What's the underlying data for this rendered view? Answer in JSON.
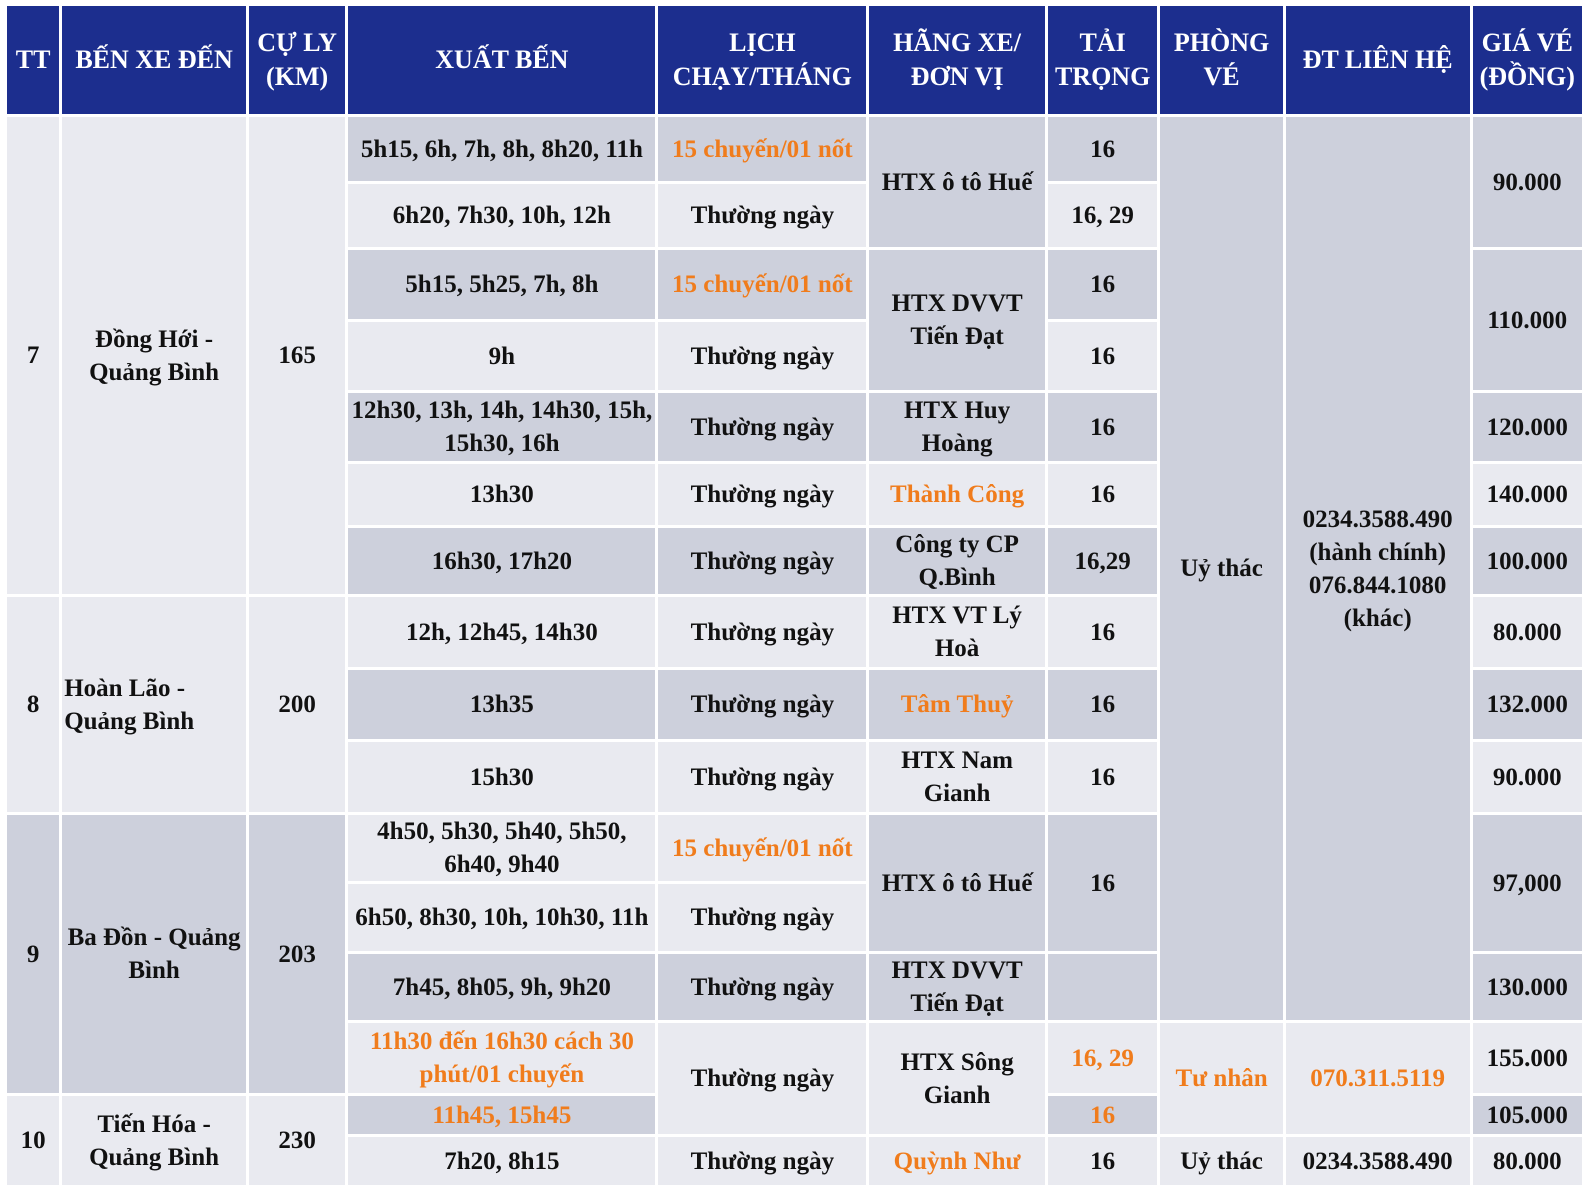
{
  "header": [
    "TT",
    "BẾN XE ĐẾN",
    "CỰ LY (KM)",
    "XUẤT BẾN",
    "LỊCH CHẠY/THÁNG",
    "HÃNG XE/ ĐƠN VỊ",
    "TẢI TRỌNG",
    "PHÒNG VÉ",
    "ĐT LIÊN HỆ",
    "GIÁ VÉ (ĐỒNG)"
  ],
  "rows": [
    [
      "7",
      "Đồng Hới - Quảng Bình",
      "165",
      "5h15, 6h, 7h, 8h, 8h20, 11h",
      "15 chuyến/01 nốt",
      "HTX ô tô Huế",
      "16",
      "Uỷ thác",
      "0234.3588.490 (hành chính) 076.844.1080 (khác)",
      "90.000"
    ],
    [
      "6h20, 7h30, 10h, 12h",
      "Thường ngày",
      "16, 29"
    ],
    [
      "5h15, 5h25, 7h, 8h",
      "15 chuyến/01 nốt",
      "HTX DVVT Tiến Đạt",
      "16",
      "110.000"
    ],
    [
      "9h",
      "Thường ngày",
      "16"
    ],
    [
      "12h30, 13h, 14h, 14h30, 15h, 15h30, 16h",
      "Thường ngày",
      "HTX Huy Hoàng",
      "16",
      "120.000"
    ],
    [
      "13h30",
      "Thường ngày",
      "Thành Công",
      "16",
      "140.000"
    ],
    [
      "16h30, 17h20",
      "Thường ngày",
      "Công ty CP Q.Bình",
      "16,29",
      "100.000"
    ],
    [
      "8",
      "Hoàn Lão - Quảng Bình",
      "200",
      "12h, 12h45, 14h30",
      "Thường ngày",
      "HTX VT Lý Hoà",
      "16",
      "80.000"
    ],
    [
      "13h35",
      "Thường ngày",
      "Tâm Thuỷ",
      "16",
      "132.000"
    ],
    [
      "15h30",
      "Thường ngày",
      "HTX Nam Gianh",
      "16",
      "90.000"
    ],
    [
      "9",
      "Ba Đồn - Quảng Bình",
      "203",
      "4h50, 5h30, 5h40, 5h50, 6h40, 9h40",
      "15 chuyến/01 nốt",
      "HTX ô tô Huế",
      "16",
      "97,000"
    ],
    [
      "6h50, 8h30, 10h, 10h30, 11h",
      "Thường ngày"
    ],
    [
      "7h45, 8h05, 9h, 9h20",
      "Thường ngày",
      "HTX DVVT Tiến Đạt",
      "130.000"
    ],
    [
      "11h30 đến 16h30 cách 30 phút/01 chuyến",
      "Thường ngày",
      "HTX Sông Gianh",
      "16, 29",
      "Tư nhân",
      "070.311.5119",
      "155.000"
    ],
    [
      "10",
      "Tiến Hóa - Quảng Bình",
      "230",
      "11h45, 15h45",
      "16",
      "105.000"
    ],
    [
      "7h20, 8h15",
      "Thường ngày",
      "Quỳnh Như",
      "16",
      "Uỷ thác",
      "0234.3588.490",
      "80.000"
    ]
  ]
}
